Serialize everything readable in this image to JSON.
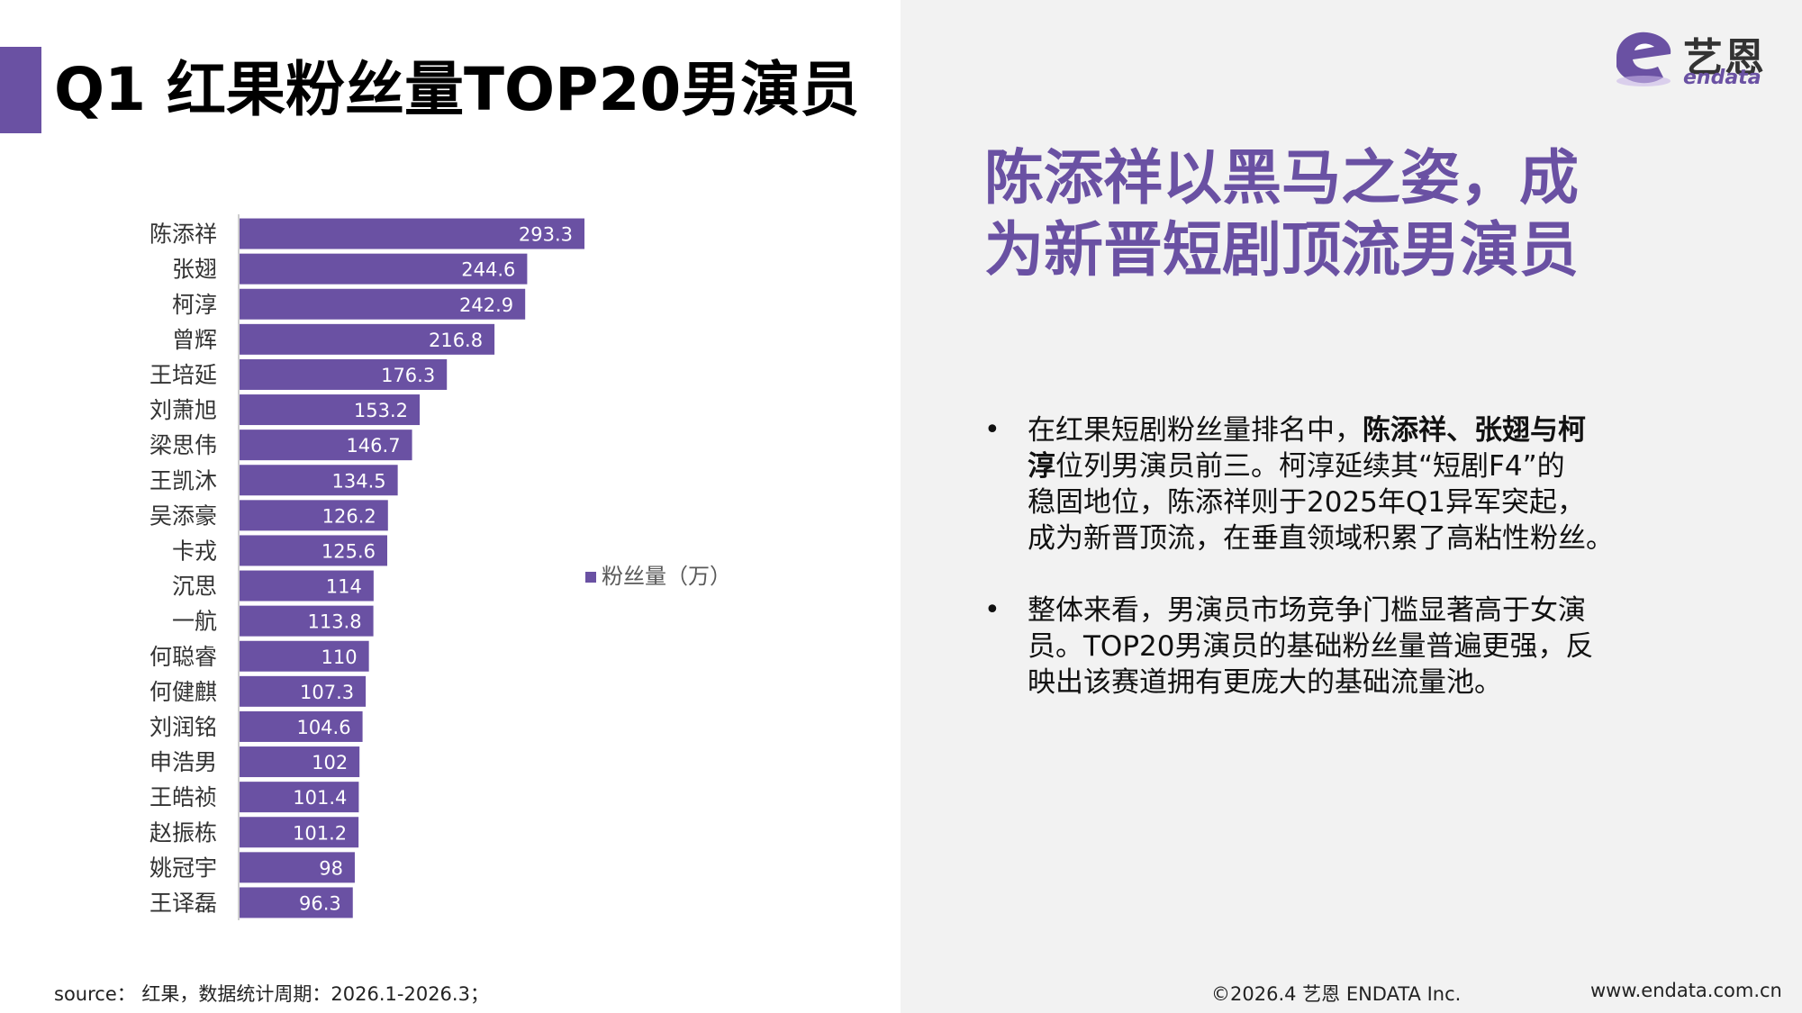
{
  "page": {
    "title": "Q1 红果粉丝量TOP20男演员",
    "accent_color": "#6a51a3"
  },
  "logo": {
    "icon": "endata-logo-icon",
    "cn": "艺恩",
    "en": "endata"
  },
  "headline": {
    "lines": [
      "陈添祥以黑马之姿，成",
      "为新晋短剧顶流男演员"
    ]
  },
  "bullets": [
    {
      "lines": [
        [
          {
            "text": "在红果短剧粉丝量排名中，",
            "bold": false
          },
          {
            "text": "陈添祥、张翅与柯",
            "bold": true
          }
        ],
        [
          {
            "text": "淳",
            "bold": true
          },
          {
            "text": "位列男演员前三。柯淳延续其“短剧F4”的",
            "bold": false
          }
        ],
        [
          {
            "text": "稳固地位，陈添祥则于2025年Q1异军突起，",
            "bold": false
          }
        ],
        [
          {
            "text": "成为新晋顶流，在垂直领域积累了高粘性粉丝。",
            "bold": false
          }
        ]
      ]
    },
    {
      "lines": [
        [
          {
            "text": "整体来看，男演员市场竞争门槛显著高于女演",
            "bold": false
          }
        ],
        [
          {
            "text": "员。TOP20男演员的基础粉丝量普遍更强，反",
            "bold": false
          }
        ],
        [
          {
            "text": "映出该赛道拥有更庞大的基础流量池。",
            "bold": false
          }
        ]
      ]
    }
  ],
  "footer": {
    "source": "source： 红果，数据统计周期：2026.1-2026.3；",
    "copyright": "©2026.4  艺恩 ENDATA Inc.",
    "url": "www.endata.com.cn"
  },
  "chart_data": {
    "type": "bar",
    "orientation": "horizontal",
    "categories": [
      "陈添祥",
      "张翅",
      "柯淳",
      "曾辉",
      "王培延",
      "刘萧旭",
      "梁思伟",
      "王凯沐",
      "吴添豪",
      "卡戎",
      "沉思",
      "一航",
      "何聪睿",
      "何健麒",
      "刘润铭",
      "申浩男",
      "王皓祯",
      "赵振栋",
      "姚冠宇",
      "王译磊"
    ],
    "series": [
      {
        "name": "粉丝量（万）",
        "color": "#6a51a3",
        "values": [
          293.3,
          244.6,
          242.9,
          216.8,
          176.3,
          153.2,
          146.7,
          134.5,
          126.2,
          125.6,
          114,
          113.8,
          110,
          107.3,
          104.6,
          102,
          101.4,
          101.2,
          98,
          96.3
        ]
      }
    ],
    "xlim": [
      0,
      293.3
    ],
    "grid": false,
    "legend_position": "right",
    "data_labels": true
  }
}
